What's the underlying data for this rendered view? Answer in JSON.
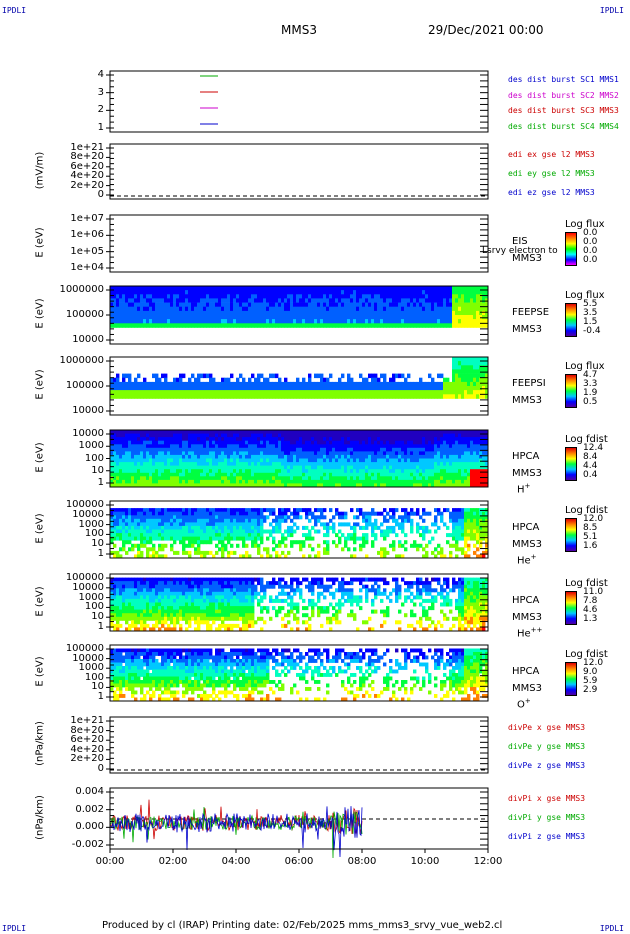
{
  "corners": {
    "tl": "IPDLI",
    "tr": "IPDLI",
    "bl": "IPDLI",
    "br": "IPDLI"
  },
  "header": {
    "spacecraft": "MMS3",
    "datetime": "29/Dec/2021 00:00"
  },
  "panels": [
    {
      "id": "p1",
      "ticks": [
        "4",
        "3",
        "2",
        "1"
      ],
      "ylabel": "",
      "right": [
        {
          "text": "des dist burst SC1 MMS1",
          "color": "#0000cc"
        },
        {
          "text": "des dist burst SC2 MMS2",
          "color": "#cc00cc"
        },
        {
          "text": "des dist burst SC3 MMS3",
          "color": "#cc0000"
        },
        {
          "text": "des dist burst SC4 MMS4",
          "color": "#00aa00"
        }
      ]
    },
    {
      "id": "p2",
      "ticks": [
        "1e+21",
        "8e+20",
        "6e+20",
        "4e+20",
        "2e+20",
        "0"
      ],
      "ylabel": "(mV/m)",
      "right": [
        {
          "text": "edi ex gse l2 MMS3",
          "color": "#cc0000"
        },
        {
          "text": "edi ey gse l2 MMS3",
          "color": "#00aa00"
        },
        {
          "text": "edi ez gse l2 MMS3",
          "color": "#0000cc"
        }
      ]
    },
    {
      "id": "p3",
      "ticks": [
        "1e+07",
        "1e+06",
        "1e+05",
        "1e+04"
      ],
      "ylabel": "E (eV)",
      "inst": [
        "EIS",
        "MMS3"
      ],
      "overlay": "Lsrvy electron to",
      "cb": {
        "title": "Log flux",
        "ticks": [
          "0.0",
          "0.0",
          "0.0",
          "0.0"
        ]
      }
    },
    {
      "id": "p4",
      "ticks": [
        "1000000",
        "100000",
        "10000"
      ],
      "ylabel": "E (eV)",
      "inst": [
        "FEEPSE",
        "MMS3"
      ],
      "cb": {
        "title": "Log flux",
        "ticks": [
          "5.5",
          "3.5",
          "1.5",
          "-0.4"
        ]
      }
    },
    {
      "id": "p5",
      "ticks": [
        "1000000",
        "100000",
        "10000"
      ],
      "ylabel": "E (eV)",
      "inst": [
        "FEEPSI",
        "MMS3"
      ],
      "cb": {
        "title": "Log flux",
        "ticks": [
          "4.7",
          "3.3",
          "1.9",
          "0.5"
        ]
      }
    },
    {
      "id": "p6",
      "ticks": [
        "10000",
        "1000",
        "100",
        "10",
        "1"
      ],
      "ylabel": "E (eV)",
      "inst": [
        "HPCA",
        "MMS3"
      ],
      "species": "H",
      "sup": "+",
      "cb": {
        "title": "Log fdist",
        "ticks": [
          "12.4",
          "8.4",
          "4.4",
          "0.4"
        ]
      }
    },
    {
      "id": "p7",
      "ticks": [
        "100000",
        "10000",
        "1000",
        "100",
        "10",
        "1"
      ],
      "ylabel": "E (eV)",
      "inst": [
        "HPCA",
        "MMS3"
      ],
      "species": "He",
      "sup": "+",
      "cb": {
        "title": "Log fdist",
        "ticks": [
          "12.0",
          "8.5",
          "5.1",
          "1.6"
        ]
      }
    },
    {
      "id": "p8",
      "ticks": [
        "100000",
        "10000",
        "1000",
        "100",
        "10",
        "1"
      ],
      "ylabel": "E (eV)",
      "inst": [
        "HPCA",
        "MMS3"
      ],
      "species": "He",
      "sup": "++",
      "cb": {
        "title": "Log fdist",
        "ticks": [
          "11.0",
          "7.8",
          "4.6",
          "1.3"
        ]
      }
    },
    {
      "id": "p9",
      "ticks": [
        "100000",
        "10000",
        "1000",
        "100",
        "10",
        "1"
      ],
      "ylabel": "E (eV)",
      "inst": [
        "HPCA",
        "MMS3"
      ],
      "species": "O",
      "sup": "+",
      "cb": {
        "title": "Log fdist",
        "ticks": [
          "12.0",
          "9.0",
          "5.9",
          "2.9"
        ]
      }
    },
    {
      "id": "p10",
      "ticks": [
        "1e+21",
        "8e+20",
        "6e+20",
        "4e+20",
        "2e+20",
        "0"
      ],
      "ylabel": "(nPa/km)",
      "right": [
        {
          "text": "divPe x gse MMS3",
          "color": "#cc0000"
        },
        {
          "text": "divPe y gse MMS3",
          "color": "#00aa00"
        },
        {
          "text": "divPe z gse MMS3",
          "color": "#0000cc"
        }
      ]
    },
    {
      "id": "p11",
      "ticks": [
        "0.004",
        "0.002",
        "0.000",
        "-0.002"
      ],
      "ylabel": "(nPa/km)",
      "right": [
        {
          "text": "divPi x gse MMS3",
          "color": "#cc0000"
        },
        {
          "text": "divPi y gse MMS3",
          "color": "#00aa00"
        },
        {
          "text": "divPi z gse MMS3",
          "color": "#0000cc"
        }
      ]
    }
  ],
  "xaxis": {
    "ticks": [
      "00:00",
      "02:00",
      "04:00",
      "06:00",
      "08:00",
      "10:00",
      "12:00"
    ]
  },
  "footer": "Produced by cl (IRAP)    Printing date: 02/Feb/2025    mms_mms3_srvy_vue_web2.cl",
  "chart_data": {
    "type": "heatmap",
    "x_range": [
      "00:00",
      "12:00"
    ],
    "note_series": [
      {
        "name": "divPi x gse MMS3",
        "color": "#cc0000"
      },
      {
        "name": "divPi y gse MMS3",
        "color": "#00aa00"
      },
      {
        "name": "divPi z gse MMS3",
        "color": "#0000cc"
      }
    ],
    "divPi_ylim": [
      -0.003,
      0.004
    ],
    "divPi_data_end": "08:00"
  }
}
